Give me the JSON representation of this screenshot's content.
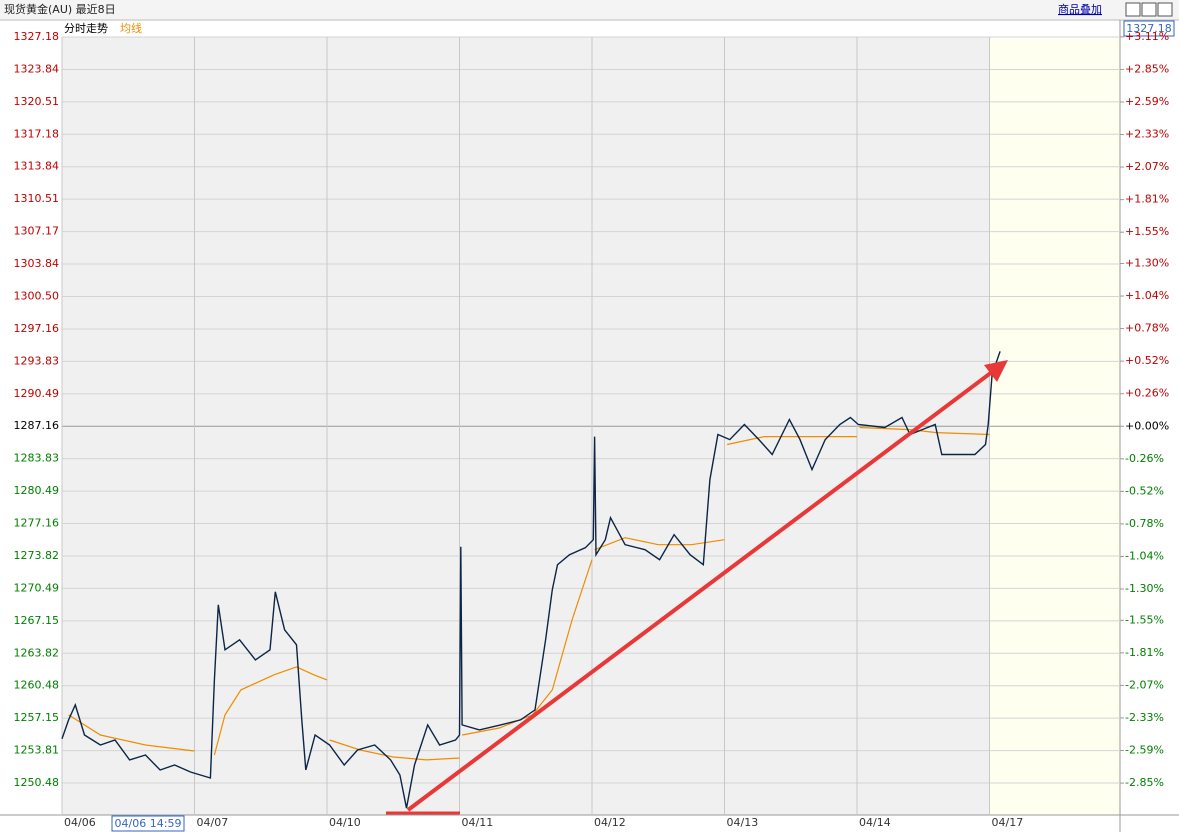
{
  "header": {
    "title": "现货黄金(AU) 最近8日",
    "overlay_button": "商品叠加",
    "cursor_price": "1327.18",
    "cursor_time": "04/06 14:59"
  },
  "chart_data": {
    "type": "line",
    "xlim": [
      0,
      8
    ],
    "xticks": [
      {
        "value": 0,
        "label": "04/06"
      },
      {
        "value": 1,
        "label": "04/07"
      },
      {
        "value": 2,
        "label": "04/10"
      },
      {
        "value": 3,
        "label": "04/11"
      },
      {
        "value": 4,
        "label": "04/12"
      },
      {
        "value": 5,
        "label": "04/13"
      },
      {
        "value": 6,
        "label": "04/14"
      },
      {
        "value": 7,
        "label": "04/17"
      }
    ],
    "ylim": [
      1247.19,
      1327.18
    ],
    "yticks": [
      1327.18,
      1323.84,
      1320.51,
      1317.18,
      1313.84,
      1310.51,
      1307.17,
      1303.84,
      {
        "value": 1300.5,
        "label": "1300.50"
      },
      1297.16,
      1293.83,
      1290.49,
      1287.16,
      1283.83,
      1280.49,
      1277.16,
      1273.82,
      1270.49,
      1267.15,
      1263.82,
      1260.48,
      1257.15,
      1253.81,
      1250.48
    ],
    "y2lim": [
      -3.105,
      3.109
    ],
    "y2ticks": [
      {
        "value": 3.11,
        "label": "+3.11%"
      },
      {
        "value": 2.85,
        "label": "+2.85%"
      },
      {
        "value": 2.59,
        "label": "+2.59%"
      },
      {
        "value": 2.33,
        "label": "+2.33%"
      },
      {
        "value": 2.07,
        "label": "+2.07%"
      },
      {
        "value": 1.81,
        "label": "+1.81%"
      },
      {
        "value": 1.55,
        "label": "+1.55%"
      },
      {
        "value": 1.3,
        "label": "+1.30%"
      },
      {
        "value": 1.04,
        "label": "+1.04%"
      },
      {
        "value": 0.78,
        "label": "+0.78%"
      },
      {
        "value": 0.52,
        "label": "+0.52%"
      },
      {
        "value": 0.26,
        "label": "+0.26%"
      },
      {
        "value": 0,
        "label": "+0.00%"
      },
      {
        "value": -0.26,
        "label": "-0.26%"
      },
      {
        "value": -0.52,
        "label": "-0.52%"
      },
      {
        "value": -0.78,
        "label": "-0.78%"
      },
      {
        "value": -1.04,
        "label": "-1.04%"
      },
      {
        "value": -1.3,
        "label": "-1.30%"
      },
      {
        "value": -1.55,
        "label": "-1.55%"
      },
      {
        "value": -1.81,
        "label": "-1.81%"
      },
      {
        "value": -2.07,
        "label": "-2.07%"
      },
      {
        "value": -2.33,
        "label": "-2.33%"
      },
      {
        "value": -2.59,
        "label": "-2.59%"
      },
      {
        "value": -2.85,
        "label": "-2.85%"
      }
    ],
    "grid": true,
    "series": [
      {
        "name": "分时走势",
        "color": "#0b2545",
        "x": [
          0,
          0.05,
          0.1,
          0.17,
          0.29,
          0.4,
          0.51,
          0.63,
          0.74,
          0.85,
          0.97,
          1.12,
          1.15,
          1.18,
          1.23,
          1.34,
          1.46,
          1.57,
          1.61,
          1.68,
          1.77,
          1.81,
          1.84,
          1.91,
          2.02,
          2.13,
          2.23,
          2.36,
          2.48,
          2.55,
          2.6,
          2.66,
          2.76,
          2.85,
          2.97,
          3,
          3.01,
          3.02,
          3.15,
          3.31,
          3.46,
          3.57,
          3.65,
          3.7,
          3.74,
          3.83,
          3.95,
          4.01,
          4.02,
          4.03,
          4.1,
          4.14,
          4.25,
          4.4,
          4.51,
          4.62,
          4.74,
          4.84,
          4.89,
          4.95,
          5.04,
          5.15,
          5.26,
          5.36,
          5.49,
          5.57,
          5.66,
          5.76,
          5.87,
          5.95,
          6.01,
          6.21,
          6.34,
          6.4,
          6.59,
          6.64,
          6.89,
          6.97,
          6.99,
          7.02,
          7.08
        ],
        "values": [
          1255.02,
          1256.97,
          1258.51,
          1255.42,
          1254.39,
          1254.9,
          1252.85,
          1253.36,
          1251.82,
          1252.33,
          1251.61,
          1250.99,
          1261.08,
          1268.8,
          1264.17,
          1265.2,
          1263.14,
          1264.17,
          1270.14,
          1266.23,
          1264.69,
          1256.97,
          1251.82,
          1255.42,
          1254.39,
          1252.33,
          1253.87,
          1254.39,
          1252.85,
          1251.3,
          1247.9,
          1252.33,
          1256.45,
          1254.39,
          1254.9,
          1255.42,
          1274.78,
          1256.45,
          1255.94,
          1256.45,
          1256.97,
          1258,
          1265.2,
          1270.35,
          1272.92,
          1273.95,
          1274.67,
          1275.5,
          1286.1,
          1273.95,
          1275.5,
          1277.76,
          1274.98,
          1274.47,
          1273.44,
          1276.01,
          1273.95,
          1272.92,
          1281.67,
          1286.31,
          1285.79,
          1287.34,
          1285.79,
          1284.25,
          1287.85,
          1285.79,
          1282.7,
          1285.79,
          1287.34,
          1288.06,
          1287.34,
          1287.03,
          1288.06,
          1286.31,
          1287.34,
          1284.25,
          1284.25,
          1285.28,
          1287.34,
          1292.49,
          1294.85
        ]
      },
      {
        "name": "均线",
        "color": "#f08c00",
        "x": [
          0.05,
          0.29,
          0.63,
          1,
          null,
          1.15,
          1.23,
          1.35,
          1.6,
          1.77,
          1.9,
          2,
          null,
          2.02,
          2.25,
          2.5,
          2.75,
          3,
          null,
          3.02,
          3.3,
          3.55,
          3.7,
          3.85,
          4,
          null,
          4.02,
          4.25,
          4.5,
          4.75,
          5,
          null,
          5.02,
          5.3,
          5.6,
          6,
          null,
          6.02,
          6.4,
          6.6,
          7
        ],
        "values": [
          1257.48,
          1255.42,
          1254.39,
          1253.77,
          null,
          1253.36,
          1257.48,
          1260.05,
          1261.6,
          1262.42,
          1261.6,
          1261.08,
          null,
          1254.9,
          1253.87,
          1253.15,
          1252.85,
          1253.05,
          null,
          1255.42,
          1256.14,
          1257.48,
          1260.05,
          1267.26,
          1273.44,
          null,
          1274.47,
          1275.7,
          1274.98,
          1274.98,
          1275.5,
          null,
          1285.28,
          1286.1,
          1286.1,
          1286.1,
          null,
          1287.03,
          1286.82,
          1286.51,
          1286.31
        ]
      }
    ]
  }
}
